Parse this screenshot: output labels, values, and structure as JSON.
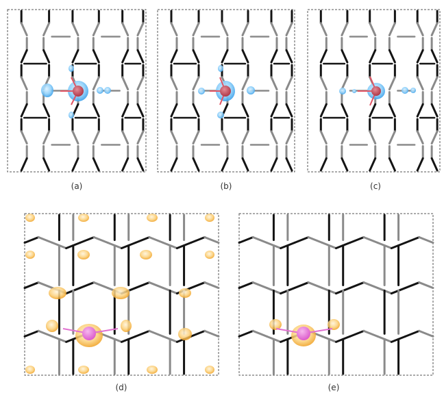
{
  "panels": [
    {
      "id": "a",
      "caption": "(a)",
      "cloud_color": "#3aa0ea",
      "atom_color": "#c04a5a",
      "bond_color": "#e05565"
    },
    {
      "id": "b",
      "caption": "(b)",
      "cloud_color": "#3aa0ea",
      "atom_color": "#c04a5a",
      "bond_color": "#e05565"
    },
    {
      "id": "c",
      "caption": "(c)",
      "cloud_color": "#3aa0ea",
      "atom_color": "#c04a5a",
      "bond_color": "#e05565"
    },
    {
      "id": "d",
      "caption": "(d)",
      "cloud_color": "#f0a020",
      "atom_color": "#e070d0",
      "bond_color": "#e070d0"
    },
    {
      "id": "e",
      "caption": "(e)",
      "cloud_color": "#f0a020",
      "atom_color": "#e070d0",
      "bond_color": "#e070d0"
    }
  ],
  "colors": {
    "bond_dark": "#141414",
    "bond_gray": "#8a8a8a",
    "border": "#555555"
  }
}
